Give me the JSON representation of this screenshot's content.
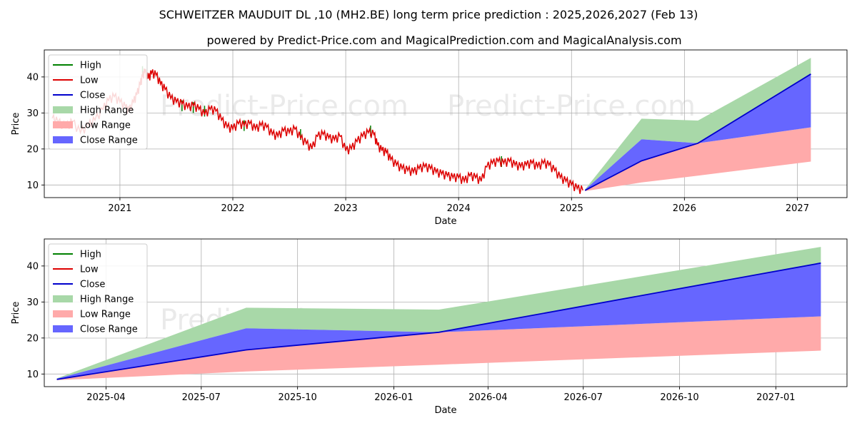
{
  "title": "SCHWEITZER MAUDUIT DL ,10 (MH2.BE) long term price prediction : 2025,2026,2027 (Feb 13)",
  "subtitle": "powered by Predict-Price.com and MagicalPrediction.com and MagicalAnalysis.com",
  "watermark": "Predict-Price.com",
  "colors": {
    "high": "#008000",
    "low": "#dd0000",
    "close": "#0000cc",
    "high_range": "#a8d8a8",
    "low_range": "#ffaaaa",
    "close_range": "#6666ff"
  },
  "legend": [
    "High",
    "Low",
    "Close",
    "High Range",
    "Low Range",
    "Close Range"
  ],
  "chart_data": [
    {
      "type": "line",
      "name": "history-and-forecast",
      "xlabel": "Date",
      "ylabel": "Price",
      "xlim": [
        2020.33,
        2027.44
      ],
      "ylim": [
        6.5,
        47.5
      ],
      "grid": true,
      "legend_position": "top-left",
      "x_ticks": [
        2021,
        2022,
        2023,
        2024,
        2025,
        2026,
        2027
      ],
      "x_tick_labels": [
        "2021",
        "2022",
        "2023",
        "2024",
        "2025",
        "2026",
        "2027"
      ],
      "y_ticks": [
        10,
        20,
        30,
        40
      ],
      "history_low": [
        [
          2020.4,
          28.5
        ],
        [
          2020.45,
          27.5
        ],
        [
          2020.52,
          26.0
        ],
        [
          2020.58,
          27.5
        ],
        [
          2020.65,
          24.5
        ],
        [
          2020.72,
          26.5
        ],
        [
          2020.78,
          28.0
        ],
        [
          2020.85,
          31.0
        ],
        [
          2020.9,
          33.5
        ],
        [
          2020.95,
          34.5
        ],
        [
          2021.0,
          33.0
        ],
        [
          2021.05,
          31.5
        ],
        [
          2021.08,
          30.5
        ],
        [
          2021.12,
          33.0
        ],
        [
          2021.15,
          35.0
        ],
        [
          2021.18,
          38.0
        ],
        [
          2021.2,
          40.0
        ],
        [
          2021.22,
          41.5
        ],
        [
          2021.25,
          39.5
        ],
        [
          2021.28,
          41.0
        ],
        [
          2021.32,
          40.5
        ],
        [
          2021.36,
          38.0
        ],
        [
          2021.4,
          36.5
        ],
        [
          2021.45,
          34.0
        ],
        [
          2021.5,
          33.0
        ],
        [
          2021.55,
          32.5
        ],
        [
          2021.6,
          31.5
        ],
        [
          2021.65,
          32.0
        ],
        [
          2021.7,
          31.0
        ],
        [
          2021.75,
          29.5
        ],
        [
          2021.8,
          31.0
        ],
        [
          2021.85,
          30.5
        ],
        [
          2021.9,
          28.0
        ],
        [
          2021.95,
          26.0
        ],
        [
          2022.0,
          25.5
        ],
        [
          2022.05,
          27.0
        ],
        [
          2022.1,
          26.5
        ],
        [
          2022.15,
          27.0
        ],
        [
          2022.2,
          25.5
        ],
        [
          2022.25,
          26.5
        ],
        [
          2022.3,
          26.0
        ],
        [
          2022.35,
          24.0
        ],
        [
          2022.4,
          23.5
        ],
        [
          2022.45,
          25.0
        ],
        [
          2022.5,
          24.5
        ],
        [
          2022.55,
          25.5
        ],
        [
          2022.6,
          23.0
        ],
        [
          2022.65,
          21.5
        ],
        [
          2022.7,
          20.0
        ],
        [
          2022.75,
          23.5
        ],
        [
          2022.8,
          24.0
        ],
        [
          2022.85,
          23.0
        ],
        [
          2022.9,
          22.5
        ],
        [
          2022.95,
          23.5
        ],
        [
          2023.0,
          19.5
        ],
        [
          2023.05,
          20.0
        ],
        [
          2023.1,
          22.0
        ],
        [
          2023.15,
          23.5
        ],
        [
          2023.2,
          24.5
        ],
        [
          2023.25,
          24.0
        ],
        [
          2023.28,
          21.0
        ],
        [
          2023.32,
          19.5
        ],
        [
          2023.36,
          19.0
        ],
        [
          2023.4,
          17.0
        ],
        [
          2023.45,
          15.5
        ],
        [
          2023.5,
          14.5
        ],
        [
          2023.55,
          14.0
        ],
        [
          2023.6,
          13.5
        ],
        [
          2023.65,
          14.5
        ],
        [
          2023.7,
          15.0
        ],
        [
          2023.75,
          14.5
        ],
        [
          2023.8,
          13.5
        ],
        [
          2023.85,
          13.0
        ],
        [
          2023.9,
          12.5
        ],
        [
          2023.95,
          12.0
        ],
        [
          2024.0,
          12.0
        ],
        [
          2024.05,
          11.0
        ],
        [
          2024.1,
          12.5
        ],
        [
          2024.15,
          12.0
        ],
        [
          2024.2,
          11.0
        ],
        [
          2024.25,
          15.0
        ],
        [
          2024.3,
          16.0
        ],
        [
          2024.35,
          16.5
        ],
        [
          2024.4,
          16.0
        ],
        [
          2024.45,
          16.5
        ],
        [
          2024.5,
          15.5
        ],
        [
          2024.55,
          15.0
        ],
        [
          2024.6,
          15.5
        ],
        [
          2024.65,
          16.0
        ],
        [
          2024.7,
          15.0
        ],
        [
          2024.75,
          16.0
        ],
        [
          2024.8,
          15.5
        ],
        [
          2024.85,
          14.0
        ],
        [
          2024.9,
          12.0
        ],
        [
          2024.95,
          11.0
        ],
        [
          2025.0,
          10.0
        ],
        [
          2025.05,
          9.0
        ],
        [
          2025.1,
          8.5
        ]
      ],
      "history_high": [
        [
          2021.2,
          43.0
        ],
        [
          2021.55,
          33.5
        ],
        [
          2021.65,
          33.0
        ],
        [
          2021.75,
          32.0
        ],
        [
          2022.1,
          28.0
        ],
        [
          2022.6,
          25.5
        ],
        [
          2023.22,
          26.5
        ],
        [
          2024.38,
          18.0
        ]
      ],
      "forecast_x": [
        2025.12,
        2025.62,
        2026.12,
        2027.12
      ],
      "close": [
        8.5,
        16.7,
        21.6,
        40.8
      ],
      "high_range_top": [
        8.8,
        28.4,
        27.9,
        45.3
      ],
      "close_range_top": [
        8.7,
        22.7,
        21.6,
        40.8
      ],
      "close_range_bottom": [
        8.5,
        16.7,
        21.6,
        26.0
      ],
      "low_range_top": [
        8.5,
        16.7,
        21.6,
        26.0
      ],
      "low_range_bottom": [
        8.3,
        10.7,
        12.6,
        16.5
      ]
    },
    {
      "type": "line",
      "name": "forecast-zoom",
      "xlabel": "Date",
      "ylabel": "Price",
      "xlim": [
        "2025-02-01",
        "2027-03-10"
      ],
      "ylim": [
        6.5,
        47.5
      ],
      "grid": true,
      "legend_position": "top-left",
      "x_ticks": [
        "2025-04-01",
        "2025-07-01",
        "2025-10-01",
        "2026-01-01",
        "2026-04-01",
        "2026-07-01",
        "2026-10-01",
        "2027-01-01"
      ],
      "x_tick_labels": [
        "2025-04",
        "2025-07",
        "2025-10",
        "2026-01",
        "2026-04",
        "2026-07",
        "2026-10",
        "2027-01"
      ],
      "y_ticks": [
        10,
        20,
        30,
        40
      ],
      "forecast_x": [
        "2025-02-13",
        "2025-08-13",
        "2026-02-13",
        "2027-02-13"
      ],
      "close": [
        8.5,
        16.7,
        21.6,
        40.8
      ],
      "high_range_top": [
        8.8,
        28.4,
        27.9,
        45.3
      ],
      "close_range_top": [
        8.7,
        22.7,
        21.6,
        40.8
      ],
      "close_range_bottom": [
        8.5,
        16.7,
        21.6,
        26.0
      ],
      "low_range_top": [
        8.5,
        16.7,
        21.6,
        26.0
      ],
      "low_range_bottom": [
        8.3,
        10.7,
        12.6,
        16.5
      ]
    }
  ]
}
